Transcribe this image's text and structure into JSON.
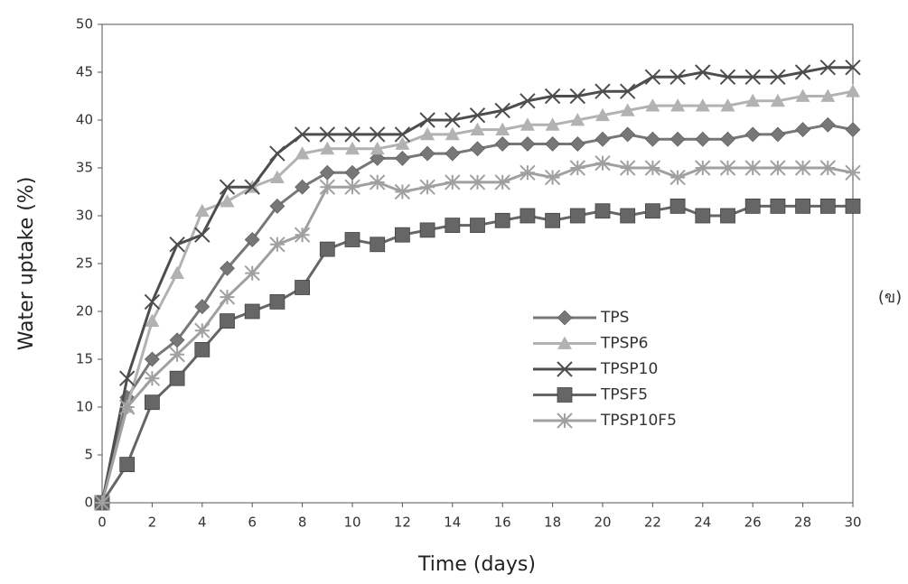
{
  "chart_data": {
    "type": "line",
    "x_label": "Time (days)",
    "y_label": "Water uptake (%)",
    "annotation": "(ข)",
    "x": [
      0,
      1,
      2,
      3,
      4,
      5,
      6,
      7,
      8,
      9,
      10,
      11,
      12,
      13,
      14,
      15,
      16,
      17,
      18,
      19,
      20,
      21,
      22,
      23,
      24,
      25,
      26,
      27,
      28,
      29,
      30
    ],
    "series": [
      {
        "name": "TPS",
        "color": "#777777",
        "marker": "diamond",
        "values": [
          0,
          11,
          15,
          17,
          20.5,
          24.5,
          27.5,
          31,
          33,
          34.5,
          34.5,
          36,
          36,
          36.5,
          36.5,
          37,
          37.5,
          37.5,
          37.5,
          37.5,
          38,
          38.5,
          38,
          38,
          38,
          38,
          38.5,
          38.5,
          39,
          39.5,
          39
        ]
      },
      {
        "name": "TPSP6",
        "color": "#b2b2b2",
        "marker": "triangle",
        "values": [
          0,
          10,
          19,
          24,
          30.5,
          31.5,
          33,
          34,
          36.5,
          37,
          37,
          37,
          37.5,
          38.5,
          38.5,
          39,
          39,
          39.5,
          39.5,
          40,
          40.5,
          41,
          41.5,
          41.5,
          41.5,
          41.5,
          42,
          42,
          42.5,
          42.5,
          43
        ]
      },
      {
        "name": "TPSP10",
        "color": "#4d4d4d",
        "marker": "x",
        "values": [
          0,
          13,
          21,
          27,
          28,
          33,
          33,
          36.5,
          38.5,
          38.5,
          38.5,
          38.5,
          38.5,
          40,
          40,
          40.5,
          41,
          42,
          42.5,
          42.5,
          43,
          43,
          44.5,
          44.5,
          45,
          44.5,
          44.5,
          44.5,
          45,
          45.5,
          45.5
        ]
      },
      {
        "name": "TPSF5",
        "color": "#666666",
        "marker": "square",
        "values": [
          0,
          4,
          10.5,
          13,
          16,
          19,
          20,
          21,
          22.5,
          26.5,
          27.5,
          27,
          28,
          28.5,
          29,
          29,
          29.5,
          30,
          29.5,
          30,
          30.5,
          30,
          30.5,
          31,
          30,
          30,
          31,
          31,
          31,
          31,
          31
        ]
      },
      {
        "name": "TPSP10F5",
        "color": "#a0a0a0",
        "marker": "asterisk",
        "values": [
          0,
          10,
          13,
          15.5,
          18,
          21.5,
          24,
          27,
          28,
          33,
          33,
          33.5,
          32.5,
          33,
          33.5,
          33.5,
          33.5,
          34.5,
          34,
          35,
          35.5,
          35,
          35,
          34,
          35,
          35,
          35,
          35,
          35,
          35,
          34.5
        ]
      }
    ],
    "xlim": [
      0,
      30
    ],
    "xticks": [
      0,
      2,
      4,
      6,
      8,
      10,
      12,
      14,
      16,
      18,
      20,
      22,
      24,
      26,
      28,
      30
    ],
    "ylim": [
      0,
      50
    ],
    "yticks": [
      0,
      5,
      10,
      15,
      20,
      25,
      30,
      35,
      40,
      45,
      50
    ],
    "grid": false,
    "legend": "lower-right"
  }
}
